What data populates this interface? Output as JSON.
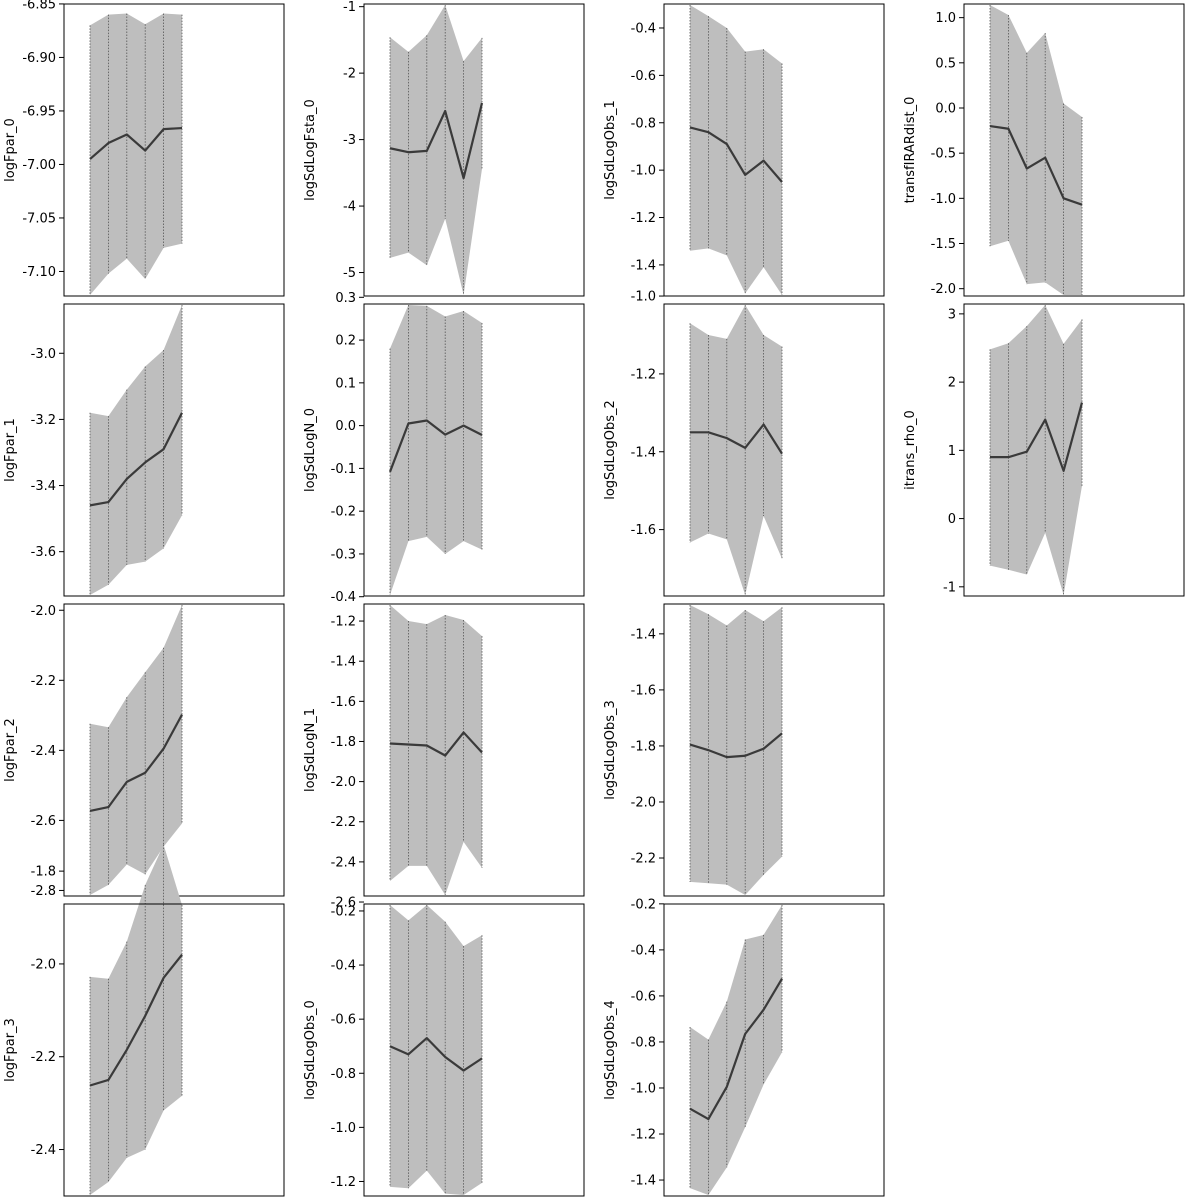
{
  "chart_data": [
    {
      "type": "area",
      "ylabel": "logFpar_0",
      "yticks": [
        -6.85,
        -6.9,
        -6.95,
        -7.0,
        -7.05,
        -7.1
      ],
      "ylim": [
        -7.122,
        -6.851
      ],
      "mean": [
        -6.995,
        -6.98,
        -6.972,
        -6.987,
        -6.967,
        -6.966
      ],
      "upper": [
        -6.87,
        -6.86,
        -6.859,
        -6.869,
        -6.859,
        -6.86
      ],
      "lower": [
        -7.122,
        -7.102,
        -7.088,
        -7.107,
        -7.078,
        -7.074
      ]
    },
    {
      "type": "area",
      "ylabel": "logSdLogFsta_0",
      "yticks": [
        -1,
        -2,
        -3,
        -4,
        -5
      ],
      "ylim": [
        -5.338,
        -0.975
      ],
      "mean": [
        -3.13,
        -3.19,
        -3.17,
        -2.57,
        -3.58,
        -2.45
      ],
      "upper": [
        -1.46,
        -1.68,
        -1.43,
        -0.975,
        -1.82,
        -1.47
      ],
      "lower": [
        -4.78,
        -4.7,
        -4.89,
        -4.19,
        -5.338,
        -3.44
      ]
    },
    {
      "type": "area",
      "ylabel": "logSdLogObs_1",
      "yticks": [
        -0.4,
        -0.6,
        -0.8,
        -1.0,
        -1.2,
        -1.4
      ],
      "ylim": [
        -1.527,
        -0.303
      ],
      "mean": [
        -0.82,
        -0.84,
        -0.89,
        -1.02,
        -0.96,
        -1.05
      ],
      "upper": [
        -0.303,
        -0.35,
        -0.4,
        -0.5,
        -0.49,
        -0.55
      ],
      "lower": [
        -1.34,
        -1.33,
        -1.36,
        -1.52,
        -1.41,
        -1.527
      ]
    },
    {
      "type": "area",
      "ylabel": "transfIRARdist_0",
      "yticks": [
        1.0,
        0.5,
        0.0,
        -0.5,
        -1.0,
        -1.5,
        -2.0
      ],
      "ylim": [
        -2.07,
        1.14
      ],
      "mean": [
        -0.2,
        -0.23,
        -0.67,
        -0.55,
        -1.0,
        -1.07
      ],
      "upper": [
        1.14,
        1.03,
        0.61,
        0.83,
        0.05,
        -0.1
      ],
      "lower": [
        -1.53,
        -1.47,
        -1.95,
        -1.93,
        -2.07,
        -2.07
      ]
    },
    {
      "type": "area",
      "ylabel": "logFpar_1",
      "yticks": [
        -3.0,
        -3.2,
        -3.4,
        -3.6
      ],
      "ylim": [
        -3.731,
        -2.854
      ],
      "mean": [
        -3.46,
        -3.45,
        -3.38,
        -3.33,
        -3.29,
        -3.18
      ],
      "upper": [
        -3.18,
        -3.19,
        -3.11,
        -3.04,
        -2.99,
        -2.854
      ],
      "lower": [
        -3.731,
        -3.7,
        -3.64,
        -3.63,
        -3.59,
        -3.49
      ]
    },
    {
      "type": "area",
      "ylabel": "logSdLogN_0",
      "yticks": [
        0.3,
        0.2,
        0.1,
        0.0,
        -0.1,
        -0.2,
        -0.3,
        -0.4
      ],
      "ylim": [
        -0.396,
        0.282
      ],
      "mean": [
        -0.108,
        0.005,
        0.012,
        -0.021,
        0.0,
        -0.022
      ],
      "upper": [
        0.18,
        0.282,
        0.28,
        0.255,
        0.268,
        0.24
      ],
      "lower": [
        -0.396,
        -0.27,
        -0.26,
        -0.3,
        -0.27,
        -0.29
      ]
    },
    {
      "type": "area",
      "ylabel": "logSdLogObs_2",
      "yticks": [
        -1.0,
        -1.2,
        -1.4,
        -1.6
      ],
      "ylim": [
        -1.768,
        -1.023
      ],
      "mean": [
        -1.35,
        -1.35,
        -1.365,
        -1.39,
        -1.33,
        -1.405
      ],
      "upper": [
        -1.07,
        -1.1,
        -1.11,
        -1.023,
        -1.1,
        -1.13
      ],
      "lower": [
        -1.633,
        -1.61,
        -1.625,
        -1.768,
        -1.565,
        -1.675
      ]
    },
    {
      "type": "area",
      "ylabel": "itrans_rho_0",
      "yticks": [
        3,
        2,
        1,
        0,
        -1
      ],
      "ylim": [
        -1.12,
        3.13
      ],
      "mean": [
        0.9,
        0.9,
        0.98,
        1.45,
        0.7,
        1.7
      ],
      "upper": [
        2.48,
        2.57,
        2.82,
        3.13,
        2.56,
        2.92
      ],
      "lower": [
        -0.69,
        -0.75,
        -0.82,
        -0.21,
        -1.12,
        0.48
      ]
    },
    {
      "type": "area",
      "ylabel": "logFpar_2",
      "yticks": [
        -2.0,
        -2.2,
        -2.4,
        -2.6,
        -2.8
      ],
      "ylim": [
        -2.813,
        -1.985
      ],
      "mean": [
        -2.573,
        -2.562,
        -2.49,
        -2.464,
        -2.395,
        -2.298
      ],
      "upper": [
        -2.324,
        -2.334,
        -2.248,
        -2.177,
        -2.107,
        -1.985
      ],
      "lower": [
        -2.813,
        -2.784,
        -2.726,
        -2.754,
        -2.675,
        -2.609
      ]
    },
    {
      "type": "area",
      "ylabel": "logSdLogN_1",
      "yticks": [
        -1.2,
        -1.4,
        -1.6,
        -1.8,
        -2.0,
        -2.2,
        -2.4,
        -2.6
      ],
      "ylim": [
        -2.565,
        -1.12
      ],
      "mean": [
        -1.81,
        -1.815,
        -1.82,
        -1.87,
        -1.755,
        -1.855
      ],
      "upper": [
        -1.12,
        -1.2,
        -1.215,
        -1.17,
        -1.195,
        -1.275
      ],
      "lower": [
        -2.495,
        -2.42,
        -2.42,
        -2.565,
        -2.3,
        -2.43
      ]
    },
    {
      "type": "area",
      "ylabel": "logSdLogObs_3",
      "yticks": [
        -1.4,
        -1.6,
        -1.8,
        -2.0,
        -2.2
      ],
      "ylim": [
        -2.332,
        -1.297
      ],
      "mean": [
        -1.795,
        -1.815,
        -1.84,
        -1.835,
        -1.81,
        -1.755
      ],
      "upper": [
        -1.297,
        -1.33,
        -1.37,
        -1.315,
        -1.355,
        -1.305
      ],
      "lower": [
        -2.285,
        -2.29,
        -2.295,
        -2.332,
        -2.26,
        -2.195
      ]
    },
    {
      "type": "area",
      "ylabel": "logFpar_3",
      "yticks": [
        -1.8,
        -2.0,
        -2.2,
        -2.4
      ],
      "ylim": [
        -2.498,
        -1.873
      ],
      "mean": [
        -2.262,
        -2.25,
        -2.185,
        -2.112,
        -2.03,
        -1.98
      ],
      "upper": [
        -2.028,
        -2.032,
        -1.952,
        -1.83,
        -1.743,
        -1.873
      ],
      "lower": [
        -2.498,
        -2.47,
        -2.418,
        -2.4,
        -2.316,
        -2.284
      ]
    },
    {
      "type": "area",
      "ylabel": "logSdLogObs_0",
      "yticks": [
        -0.2,
        -0.4,
        -0.6,
        -0.8,
        -1.0,
        -1.2
      ],
      "ylim": [
        -1.25,
        -0.178
      ],
      "mean": [
        -0.7,
        -0.73,
        -0.67,
        -0.74,
        -0.79,
        -0.745
      ],
      "upper": [
        -0.178,
        -0.235,
        -0.178,
        -0.24,
        -0.33,
        -0.29
      ],
      "lower": [
        -1.22,
        -1.225,
        -1.16,
        -1.245,
        -1.25,
        -1.205
      ]
    },
    {
      "type": "area",
      "ylabel": "logSdLogObs_4",
      "yticks": [
        -0.2,
        -0.4,
        -0.6,
        -0.8,
        -1.0,
        -1.2,
        -1.4
      ],
      "ylim": [
        -1.465,
        -0.205
      ],
      "mean": [
        -1.09,
        -1.135,
        -0.995,
        -0.765,
        -0.66,
        -0.525
      ],
      "upper": [
        -0.735,
        -0.79,
        -0.625,
        -0.355,
        -0.335,
        -0.205
      ],
      "lower": [
        -1.435,
        -1.465,
        -1.345,
        -1.17,
        -0.985,
        -0.845
      ]
    }
  ],
  "colors": {
    "band_fill": "#bebebe",
    "mean_line": "#3a3a3a",
    "vertical_line": "#555555",
    "frame": "#000000"
  }
}
